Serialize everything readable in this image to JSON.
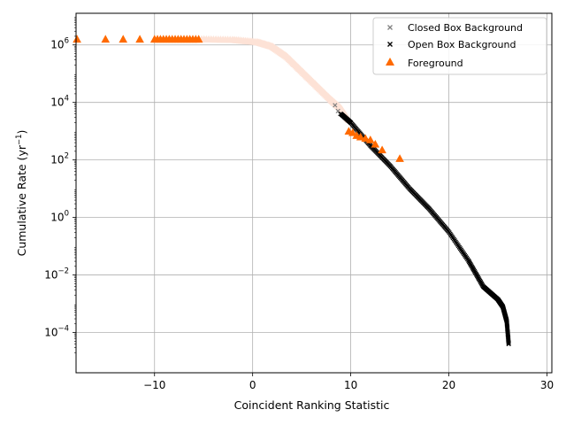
{
  "chart_data": {
    "type": "scatter",
    "xlabel": "Coincident Ranking Statistic",
    "ylabel_text": "Cumulative Rate (yr",
    "ylabel_sup": "−1",
    "ylabel_close": ")",
    "xlim": [
      -18,
      30.5
    ],
    "ylim_log10": [
      -5.4,
      7.1
    ],
    "y_scale": "log",
    "grid": true,
    "legend_position": "top-right",
    "x_ticks": [
      {
        "value": -10,
        "label": "−10"
      },
      {
        "value": 0,
        "label": "0"
      },
      {
        "value": 10,
        "label": "10"
      },
      {
        "value": 20,
        "label": "20"
      },
      {
        "value": 30,
        "label": "30"
      }
    ],
    "y_ticks": [
      {
        "exp": 6,
        "base": "10",
        "sup": "6"
      },
      {
        "exp": 4,
        "base": "10",
        "sup": "4"
      },
      {
        "exp": 2,
        "base": "10",
        "sup": "2"
      },
      {
        "exp": 0,
        "base": "10",
        "sup": "0"
      },
      {
        "exp": -2,
        "base": "10",
        "sup": "−2"
      },
      {
        "exp": -4,
        "base": "10",
        "sup": "−4"
      }
    ],
    "series": [
      {
        "name": "Closed Box Background",
        "marker": "x",
        "color": "#808080",
        "points": [
          [
            8.4,
            3.9
          ],
          [
            8.7,
            3.7
          ],
          [
            8.9,
            3.6
          ]
        ]
      },
      {
        "name": "Open Box Background",
        "marker": "x",
        "color": "#000000",
        "curve": [
          [
            9.0,
            3.6
          ],
          [
            10.0,
            3.3
          ],
          [
            12.0,
            2.5
          ],
          [
            14.0,
            1.8
          ],
          [
            16.0,
            1.0
          ],
          [
            18.0,
            0.3
          ],
          [
            20.0,
            -0.5
          ],
          [
            22.0,
            -1.5
          ],
          [
            23.5,
            -2.4
          ],
          [
            25.0,
            -2.85
          ],
          [
            25.5,
            -3.1
          ],
          [
            25.9,
            -3.6
          ],
          [
            26.1,
            -4.4
          ]
        ],
        "curve_density": 260
      },
      {
        "name": "Foreground",
        "marker": "triangle",
        "color": "#ff6a00",
        "points": [
          [
            -17.9,
            6.2
          ],
          [
            -15.0,
            6.2
          ],
          [
            -13.2,
            6.2
          ],
          [
            -11.5,
            6.2
          ],
          [
            -10.0,
            6.2
          ],
          [
            -9.7,
            6.2
          ],
          [
            -9.4,
            6.2
          ],
          [
            -9.1,
            6.2
          ],
          [
            -8.8,
            6.2
          ],
          [
            -8.5,
            6.2
          ],
          [
            -8.2,
            6.2
          ],
          [
            -7.9,
            6.2
          ],
          [
            -7.6,
            6.2
          ],
          [
            -7.3,
            6.2
          ],
          [
            -7.0,
            6.2
          ],
          [
            -6.7,
            6.2
          ],
          [
            -6.4,
            6.2
          ],
          [
            -6.1,
            6.2
          ],
          [
            -5.8,
            6.2
          ],
          [
            -5.5,
            6.2
          ],
          [
            9.8,
            3.0
          ],
          [
            10.2,
            2.95
          ],
          [
            10.6,
            2.85
          ],
          [
            11.0,
            2.8
          ],
          [
            11.5,
            2.75
          ],
          [
            12.0,
            2.7
          ],
          [
            12.5,
            2.55
          ],
          [
            13.2,
            2.35
          ],
          [
            15.0,
            2.05
          ]
        ],
        "faded_curve": [
          [
            -5.2,
            6.2
          ],
          [
            -2.0,
            6.18
          ],
          [
            0.5,
            6.1
          ],
          [
            2.0,
            5.95
          ],
          [
            3.5,
            5.6
          ],
          [
            5.0,
            5.1
          ],
          [
            6.5,
            4.6
          ],
          [
            8.0,
            4.1
          ],
          [
            9.0,
            3.8
          ],
          [
            9.8,
            3.4
          ]
        ],
        "faded_count": 120,
        "faded_color": "#fde2d6"
      }
    ]
  }
}
